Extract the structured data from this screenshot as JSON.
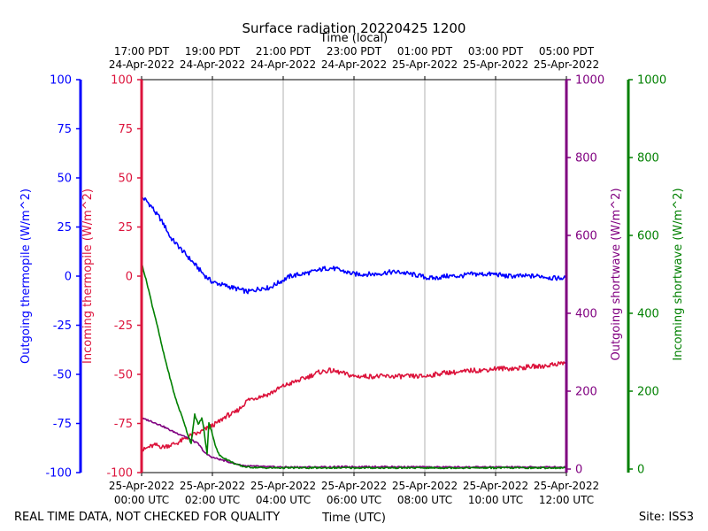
{
  "chart_data": {
    "type": "line",
    "title": "Surface radiation 20220425 1200",
    "top_axis_label": "Time (local)",
    "bottom_axis_label": "Time (UTC)",
    "footer_left": "REAL TIME DATA, NOT CHECKED FOR QUALITY",
    "footer_right": "Site: ISS3",
    "x_range_hours": [
      0,
      12
    ],
    "x_ticks_hours": [
      0,
      2,
      4,
      6,
      8,
      10,
      12
    ],
    "bottom_tick_labels": [
      [
        "25-Apr-2022",
        "00:00 UTC"
      ],
      [
        "25-Apr-2022",
        "02:00 UTC"
      ],
      [
        "25-Apr-2022",
        "04:00 UTC"
      ],
      [
        "25-Apr-2022",
        "06:00 UTC"
      ],
      [
        "25-Apr-2022",
        "08:00 UTC"
      ],
      [
        "25-Apr-2022",
        "10:00 UTC"
      ],
      [
        "25-Apr-2022",
        "12:00 UTC"
      ]
    ],
    "top_tick_labels": [
      [
        "17:00 PDT",
        "24-Apr-2022"
      ],
      [
        "19:00 PDT",
        "24-Apr-2022"
      ],
      [
        "21:00 PDT",
        "24-Apr-2022"
      ],
      [
        "23:00 PDT",
        "24-Apr-2022"
      ],
      [
        "01:00 PDT",
        "25-Apr-2022"
      ],
      [
        "03:00 PDT",
        "25-Apr-2022"
      ],
      [
        "05:00 PDT",
        "25-Apr-2022"
      ]
    ],
    "axes": [
      {
        "id": "out_thermo",
        "label": "Outgoing thermopile (W/m^2)",
        "color": "#0000ff",
        "range": [
          -100,
          100
        ],
        "ticks": [
          -100,
          -75,
          -50,
          -25,
          0,
          25,
          50,
          75,
          100
        ]
      },
      {
        "id": "in_thermo",
        "label": "Incoming thermopile (W/m^2)",
        "color": "#dc143c",
        "range": [
          -100,
          100
        ],
        "ticks": [
          -100,
          -75,
          -50,
          -25,
          0,
          25,
          50,
          75,
          100
        ]
      },
      {
        "id": "out_sw",
        "label": "Outgoing shortwave (W/m^2)",
        "color": "#800080",
        "range": [
          0,
          1000
        ],
        "ticks": [
          0,
          200,
          400,
          600,
          800,
          1000
        ]
      },
      {
        "id": "in_sw",
        "label": "Incoming shortwave (W/m^2)",
        "color": "#008000",
        "range": [
          0,
          1000
        ],
        "ticks": [
          0,
          200,
          400,
          600,
          800,
          1000
        ]
      }
    ],
    "series": [
      {
        "name": "Outgoing thermopile",
        "axis": "out_thermo",
        "color": "#0000ff",
        "x": [
          0,
          0.1,
          0.2,
          0.3,
          0.4,
          0.5,
          0.6,
          0.7,
          0.8,
          1.0,
          1.2,
          1.4,
          1.6,
          1.8,
          2.0,
          2.2,
          2.4,
          2.6,
          2.8,
          3.0,
          3.2,
          3.4,
          3.6,
          3.8,
          4.0,
          4.2,
          4.5,
          4.8,
          5.0,
          5.2,
          5.4,
          5.6,
          5.8,
          6.0,
          6.3,
          6.6,
          7.0,
          7.3,
          7.6,
          7.9,
          8.1,
          8.3,
          8.6,
          9.0,
          9.3,
          9.6,
          10.0,
          10.3,
          10.6,
          11.0,
          11.3,
          11.6,
          12.0
        ],
        "values": [
          40,
          39,
          37,
          35,
          32,
          30,
          27,
          24,
          20,
          16,
          12,
          8,
          4,
          0,
          -3,
          -4,
          -5,
          -6,
          -7,
          -8,
          -7,
          -6,
          -6,
          -4,
          -2,
          0,
          1,
          2,
          3,
          4,
          4,
          3,
          2,
          1,
          1,
          1,
          2,
          2,
          1,
          0,
          -1,
          -1,
          0,
          0,
          1,
          1,
          1,
          0,
          0,
          0,
          0,
          -1,
          -1
        ]
      },
      {
        "name": "Incoming thermopile",
        "axis": "in_thermo",
        "color": "#dc143c",
        "x": [
          0,
          0.2,
          0.4,
          0.6,
          0.8,
          1.0,
          1.2,
          1.4,
          1.6,
          1.8,
          2.0,
          2.2,
          2.4,
          2.6,
          2.8,
          3.0,
          3.2,
          3.4,
          3.6,
          3.8,
          4.0,
          4.3,
          4.6,
          5.0,
          5.3,
          5.6,
          6.0,
          6.3,
          6.6,
          7.0,
          7.3,
          7.6,
          8.0,
          8.3,
          8.6,
          9.0,
          9.3,
          9.6,
          10.0,
          10.3,
          10.6,
          11.0,
          11.3,
          11.6,
          12.0
        ],
        "values": [
          -89,
          -87,
          -86,
          -87,
          -86,
          -85,
          -83,
          -81,
          -80,
          -78,
          -76,
          -74,
          -71,
          -70,
          -67,
          -63,
          -62,
          -61,
          -60,
          -58,
          -56,
          -54,
          -52,
          -49,
          -48,
          -49,
          -51,
          -51,
          -51,
          -51,
          -51,
          -51,
          -51,
          -50,
          -49,
          -49,
          -48,
          -48,
          -47,
          -47,
          -47,
          -46,
          -46,
          -45,
          -44
        ]
      },
      {
        "name": "Outgoing shortwave",
        "axis": "out_sw",
        "color": "#800080",
        "x": [
          0,
          0.2,
          0.4,
          0.6,
          0.8,
          1.0,
          1.2,
          1.4,
          1.6,
          1.8,
          2.0,
          2.2,
          2.4,
          2.6,
          2.8,
          3.0,
          3.5,
          4.0,
          5.0,
          6.0,
          7.0,
          8.0,
          9.0,
          10.0,
          11.0,
          12.0
        ],
        "values": [
          130,
          125,
          118,
          110,
          100,
          92,
          85,
          75,
          65,
          40,
          30,
          25,
          20,
          15,
          10,
          8,
          6,
          5,
          5,
          6,
          6,
          5,
          5,
          5,
          5,
          5
        ]
      },
      {
        "name": "Incoming shortwave",
        "axis": "in_sw",
        "color": "#008000",
        "x": [
          0,
          0.1,
          0.2,
          0.3,
          0.4,
          0.5,
          0.6,
          0.7,
          0.8,
          0.9,
          1.0,
          1.1,
          1.2,
          1.3,
          1.4,
          1.5,
          1.6,
          1.7,
          1.75,
          1.8,
          1.85,
          1.9,
          2.0,
          2.1,
          2.2,
          2.4,
          2.6,
          2.8,
          3.0,
          3.5,
          4.0,
          6.0,
          8.0,
          10.0,
          12.0
        ],
        "values": [
          530,
          495,
          460,
          420,
          385,
          345,
          305,
          270,
          235,
          200,
          170,
          145,
          120,
          90,
          65,
          140,
          115,
          130,
          110,
          70,
          40,
          120,
          90,
          55,
          35,
          25,
          15,
          8,
          5,
          3,
          3,
          3,
          3,
          3,
          3
        ]
      }
    ]
  }
}
